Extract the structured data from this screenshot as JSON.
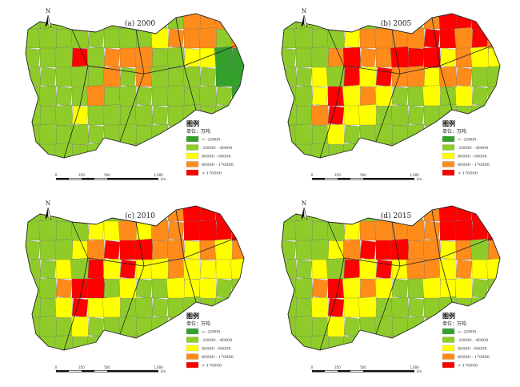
{
  "figure": {
    "panels": [
      {
        "title": "(a) 2000",
        "unit_label": "单位：万吨",
        "classes": [
          "11111111113333",
          "11111111233313",
          "11141333112200",
          "11111313111100",
          "11113111111110",
          "11121111111111",
          "11111111111111",
          "11111111111111"
        ]
      },
      {
        "title": "(b) 2005",
        "unit_label": "单位：万吨",
        "classes": [
          "11111111134444",
          "11112333344343",
          "11134334442322",
          "11214243323311",
          "11242321121211",
          "11342211111111",
          "11121111111111",
          "11111111111111"
        ]
      },
      {
        "title": "(c) 2010",
        "unit_label": "单位：万吨",
        "classes": [
          "11111111134444",
          "11112232334444",
          "11123444332323",
          "11214242232222",
          "11344121122211",
          "11242211111111",
          "11121111111111",
          "11111111111111"
        ]
      },
      {
        "title": "(d) 2015",
        "unit_label": "单位：万吨",
        "classes": [
          "11111111134444",
          "11112333334444",
          "11123444332313",
          "11214242332322",
          "11342321122211",
          "11242211111111",
          "11121111111111",
          "11111111111111"
        ]
      }
    ],
    "legend": {
      "title": "图例",
      "items": [
        {
          "label": "< -20000",
          "color": "#33a02c"
        },
        {
          "label": "-20000 - 40000",
          "color": "#8fcc2a"
        },
        {
          "label": "40000 - 80000",
          "color": "#ffff00"
        },
        {
          "label": "80000 - 170000",
          "color": "#ff8c1a"
        },
        {
          "label": "> 170000",
          "color": "#ff0000"
        }
      ]
    },
    "north_label": "N",
    "scale_bar": {
      "ticks": [
        "0",
        "250",
        "500",
        "1,000"
      ],
      "unit": "km"
    }
  }
}
